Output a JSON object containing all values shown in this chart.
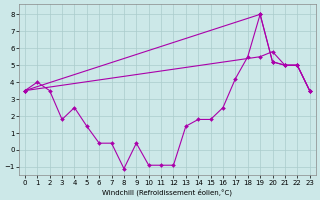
{
  "xlabel": "Windchill (Refroidissement éolien,°C)",
  "bg_color": "#cce8e8",
  "grid_color": "#aacccc",
  "line_color": "#aa00aa",
  "xlim": [
    -0.5,
    23.5
  ],
  "ylim": [
    -1.5,
    8.6
  ],
  "xticks": [
    0,
    1,
    2,
    3,
    4,
    5,
    6,
    7,
    8,
    9,
    10,
    11,
    12,
    13,
    14,
    15,
    16,
    17,
    18,
    19,
    20,
    21,
    22,
    23
  ],
  "yticks": [
    -1,
    0,
    1,
    2,
    3,
    4,
    5,
    6,
    7,
    8
  ],
  "line1_x": [
    0,
    19,
    20,
    21,
    22,
    23
  ],
  "line1_y": [
    3.5,
    8.0,
    5.2,
    5.0,
    5.0,
    3.5
  ],
  "line2_x": [
    0,
    19,
    20,
    21,
    22,
    23
  ],
  "line2_y": [
    3.5,
    5.5,
    5.8,
    5.0,
    5.0,
    3.5
  ],
  "line3_x": [
    0,
    1,
    2,
    3,
    4,
    5,
    6,
    7,
    8,
    9,
    10,
    11,
    12,
    13,
    14,
    15,
    16,
    17,
    18,
    19,
    20,
    21,
    22,
    23
  ],
  "line3_y": [
    3.5,
    4.0,
    3.5,
    1.8,
    2.5,
    1.4,
    0.4,
    0.4,
    -1.1,
    0.4,
    -0.9,
    -0.9,
    -0.9,
    1.4,
    1.8,
    1.8,
    2.5,
    4.2,
    5.5,
    8.0,
    5.2,
    5.0,
    5.0,
    3.5
  ],
  "marker": "D",
  "marker_size": 2,
  "line_width": 0.8,
  "xlabel_fontsize": 5,
  "tick_fontsize": 5
}
